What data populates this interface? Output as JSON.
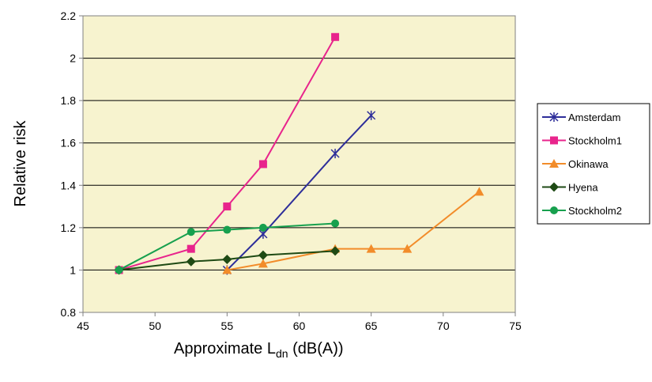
{
  "chart_data": {
    "type": "line",
    "xlabel_main": "Approximate L",
    "xlabel_sub": "dn",
    "xlabel_tail": " (dB(A))",
    "ylabel": "Relative risk",
    "xlim": [
      45,
      75
    ],
    "ylim": [
      0.8,
      2.2
    ],
    "xticks": [
      45,
      50,
      55,
      60,
      65,
      70,
      75
    ],
    "yticks": [
      0.8,
      1,
      1.2,
      1.4,
      1.6,
      1.8,
      2,
      2.2
    ],
    "ytick_labels": [
      "0.8",
      "1",
      "1.2",
      "1.4",
      "1.6",
      "1.8",
      "2",
      "2.2"
    ],
    "grid": "horizontal",
    "plot_background": "#f7f3cf",
    "legend_position": "right",
    "series": [
      {
        "name": "Amsterdam",
        "color": "#2e2e9a",
        "marker": "star",
        "x": [
          55,
          57.5,
          62.5,
          65
        ],
        "y": [
          1.0,
          1.17,
          1.55,
          1.73
        ]
      },
      {
        "name": "Stockholm1",
        "color": "#e8248c",
        "marker": "square",
        "x": [
          47.5,
          52.5,
          55,
          57.5,
          62.5
        ],
        "y": [
          1.0,
          1.1,
          1.3,
          1.5,
          2.1
        ]
      },
      {
        "name": "Okinawa",
        "color": "#f28c2a",
        "marker": "triangle",
        "x": [
          55,
          57.5,
          62.5,
          65,
          67.5,
          72.5
        ],
        "y": [
          1.0,
          1.03,
          1.1,
          1.1,
          1.1,
          1.37
        ]
      },
      {
        "name": "Hyena",
        "color": "#1e4a14",
        "marker": "diamond",
        "x": [
          47.5,
          52.5,
          55,
          57.5,
          62.5
        ],
        "y": [
          1.0,
          1.04,
          1.05,
          1.07,
          1.09
        ]
      },
      {
        "name": "Stockholm2",
        "color": "#17a04e",
        "marker": "circle",
        "x": [
          47.5,
          52.5,
          55,
          57.5,
          62.5
        ],
        "y": [
          1.0,
          1.18,
          1.19,
          1.2,
          1.22
        ]
      }
    ]
  }
}
